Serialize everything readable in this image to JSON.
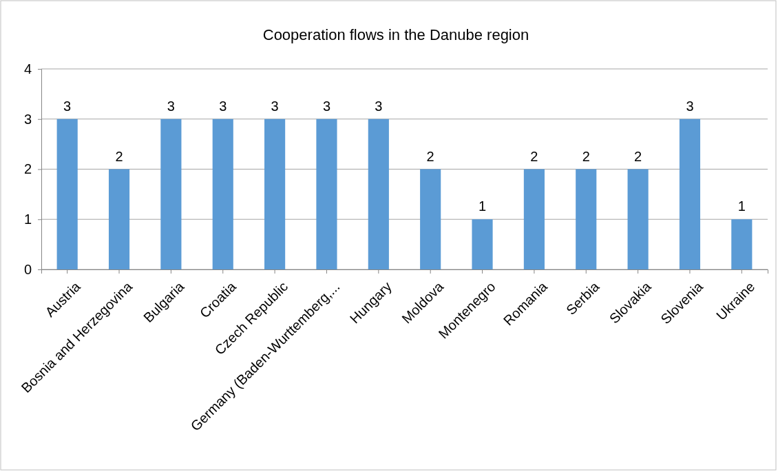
{
  "chart_data": {
    "type": "bar",
    "title": "Cooperation flows in the Danube region",
    "categories": [
      "Austria",
      "Bosnia and Herzegovina",
      "Bulgaria",
      "Croatia",
      "Czech Republic",
      "Germany (Baden-Wurttemberg,...",
      "Hungary",
      "Moldova",
      "Montenegro",
      "Romania",
      "Serbia",
      "Slovakia",
      "Slovenia",
      "Ukraine"
    ],
    "values": [
      3,
      2,
      3,
      3,
      3,
      3,
      3,
      2,
      1,
      2,
      2,
      2,
      3,
      1
    ],
    "color": "#5b9bd5",
    "ylim": [
      0,
      4
    ],
    "yticks": [
      0,
      1,
      2,
      3,
      4
    ],
    "grid": "y",
    "data_labels": true
  }
}
